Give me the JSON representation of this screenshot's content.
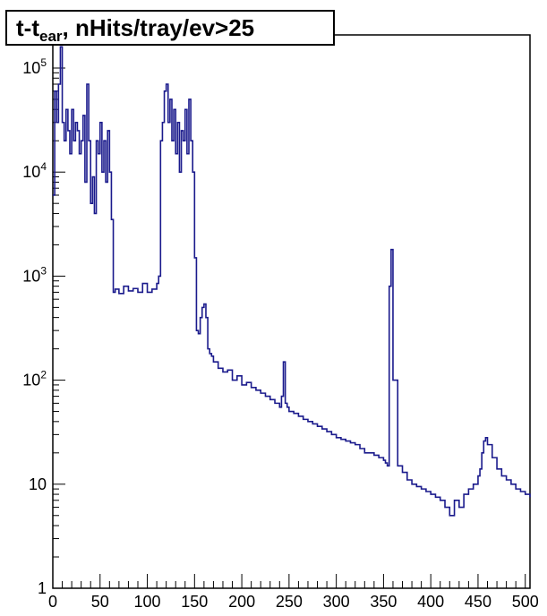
{
  "chart_data": {
    "type": "line",
    "title_main": "t-t",
    "title_sub": "ear",
    "title_rest": ", nHits/tray/ev>25",
    "xlabel": "",
    "ylabel": "",
    "xlim": [
      0,
      505
    ],
    "ylim": [
      1,
      200000
    ],
    "yscale": "log",
    "grid": false,
    "line_color": "#1a1a8c",
    "x_ticks": [
      0,
      50,
      100,
      150,
      200,
      250,
      300,
      350,
      400,
      450,
      500
    ],
    "y_ticks": [
      {
        "value": 1,
        "base": "1",
        "exp": ""
      },
      {
        "value": 10,
        "base": "10",
        "exp": ""
      },
      {
        "value": 100,
        "base": "10",
        "exp": "2"
      },
      {
        "value": 1000,
        "base": "10",
        "exp": "3"
      },
      {
        "value": 10000,
        "base": "10",
        "exp": "4"
      },
      {
        "value": 100000,
        "base": "10",
        "exp": "5"
      }
    ],
    "series": [
      {
        "x": [
          0,
          2,
          4,
          6,
          8,
          10,
          12,
          14,
          16,
          18,
          20,
          22,
          24,
          26,
          28,
          30,
          32,
          34,
          36,
          38,
          40,
          42,
          44,
          46,
          48,
          50,
          52,
          54,
          56,
          58,
          60,
          62,
          64,
          66,
          70,
          75,
          80,
          85,
          90,
          95,
          100,
          105,
          110,
          112,
          114,
          116,
          118,
          120,
          122,
          124,
          126,
          128,
          130,
          132,
          134,
          136,
          138,
          140,
          142,
          144,
          146,
          148,
          150,
          152,
          154,
          156,
          158,
          160,
          162,
          164,
          166,
          168,
          170,
          175,
          180,
          185,
          190,
          195,
          200,
          205,
          210,
          215,
          220,
          225,
          230,
          235,
          240,
          242,
          244,
          246,
          248,
          250,
          255,
          260,
          265,
          270,
          275,
          280,
          285,
          290,
          295,
          300,
          305,
          310,
          315,
          320,
          325,
          330,
          335,
          340,
          345,
          350,
          352,
          354,
          356,
          358,
          360,
          365,
          370,
          375,
          380,
          385,
          390,
          395,
          400,
          405,
          410,
          415,
          420,
          425,
          430,
          435,
          440,
          445,
          450,
          452,
          454,
          456,
          458,
          460,
          465,
          470,
          475,
          480,
          485,
          490,
          495,
          500,
          505
        ],
        "y": [
          6000,
          60000,
          30000,
          70000,
          160000,
          30000,
          20000,
          40000,
          25000,
          15000,
          40000,
          20000,
          30000,
          25000,
          15000,
          20000,
          35000,
          8000,
          70000,
          20000,
          5000,
          9000,
          4000,
          20000,
          15000,
          30000,
          10000,
          20000,
          8000,
          25000,
          10000,
          3500,
          700,
          750,
          680,
          800,
          720,
          760,
          700,
          850,
          700,
          750,
          850,
          1000,
          20000,
          30000,
          60000,
          70000,
          30000,
          50000,
          20000,
          40000,
          15000,
          30000,
          10000,
          25000,
          20000,
          40000,
          15000,
          50000,
          20000,
          10000,
          1500,
          300,
          280,
          400,
          500,
          540,
          400,
          200,
          180,
          170,
          150,
          130,
          120,
          125,
          100,
          110,
          90,
          95,
          85,
          80,
          75,
          70,
          65,
          60,
          55,
          70,
          150,
          60,
          55,
          50,
          48,
          45,
          42,
          40,
          38,
          36,
          34,
          32,
          30,
          28,
          27,
          26,
          25,
          24,
          22,
          20,
          20,
          19,
          18,
          17,
          16,
          15,
          800,
          1800,
          100,
          15,
          13,
          11,
          10,
          9.5,
          9,
          8.5,
          8,
          7.5,
          7,
          6,
          5,
          7,
          6,
          8,
          9,
          10,
          12,
          14,
          20,
          26,
          28,
          24,
          18,
          14,
          12,
          11,
          10,
          9,
          8.5,
          8,
          7.5
        ],
        "mean": true
      }
    ]
  }
}
